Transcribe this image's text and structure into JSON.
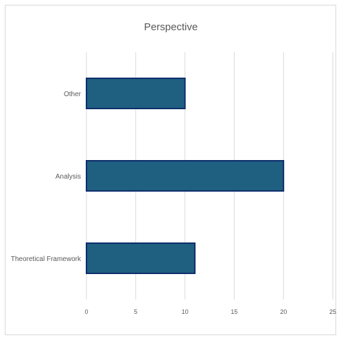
{
  "chart_data": {
    "type": "bar",
    "orientation": "horizontal",
    "title": "Perspective",
    "categories": [
      "Other",
      "Analysis",
      "Theoretical Framework"
    ],
    "values": [
      10,
      20,
      11
    ],
    "xlim": [
      0,
      25
    ],
    "x_ticks": [
      "0",
      "5",
      "10",
      "15",
      "20",
      "25"
    ],
    "xlabel": "",
    "ylabel": "",
    "grid": true,
    "legend": "none",
    "colors": {
      "bar_fill": "#1f5f80",
      "bar_stroke": "#0d2d6b",
      "grid": "#d9d9d9"
    }
  }
}
